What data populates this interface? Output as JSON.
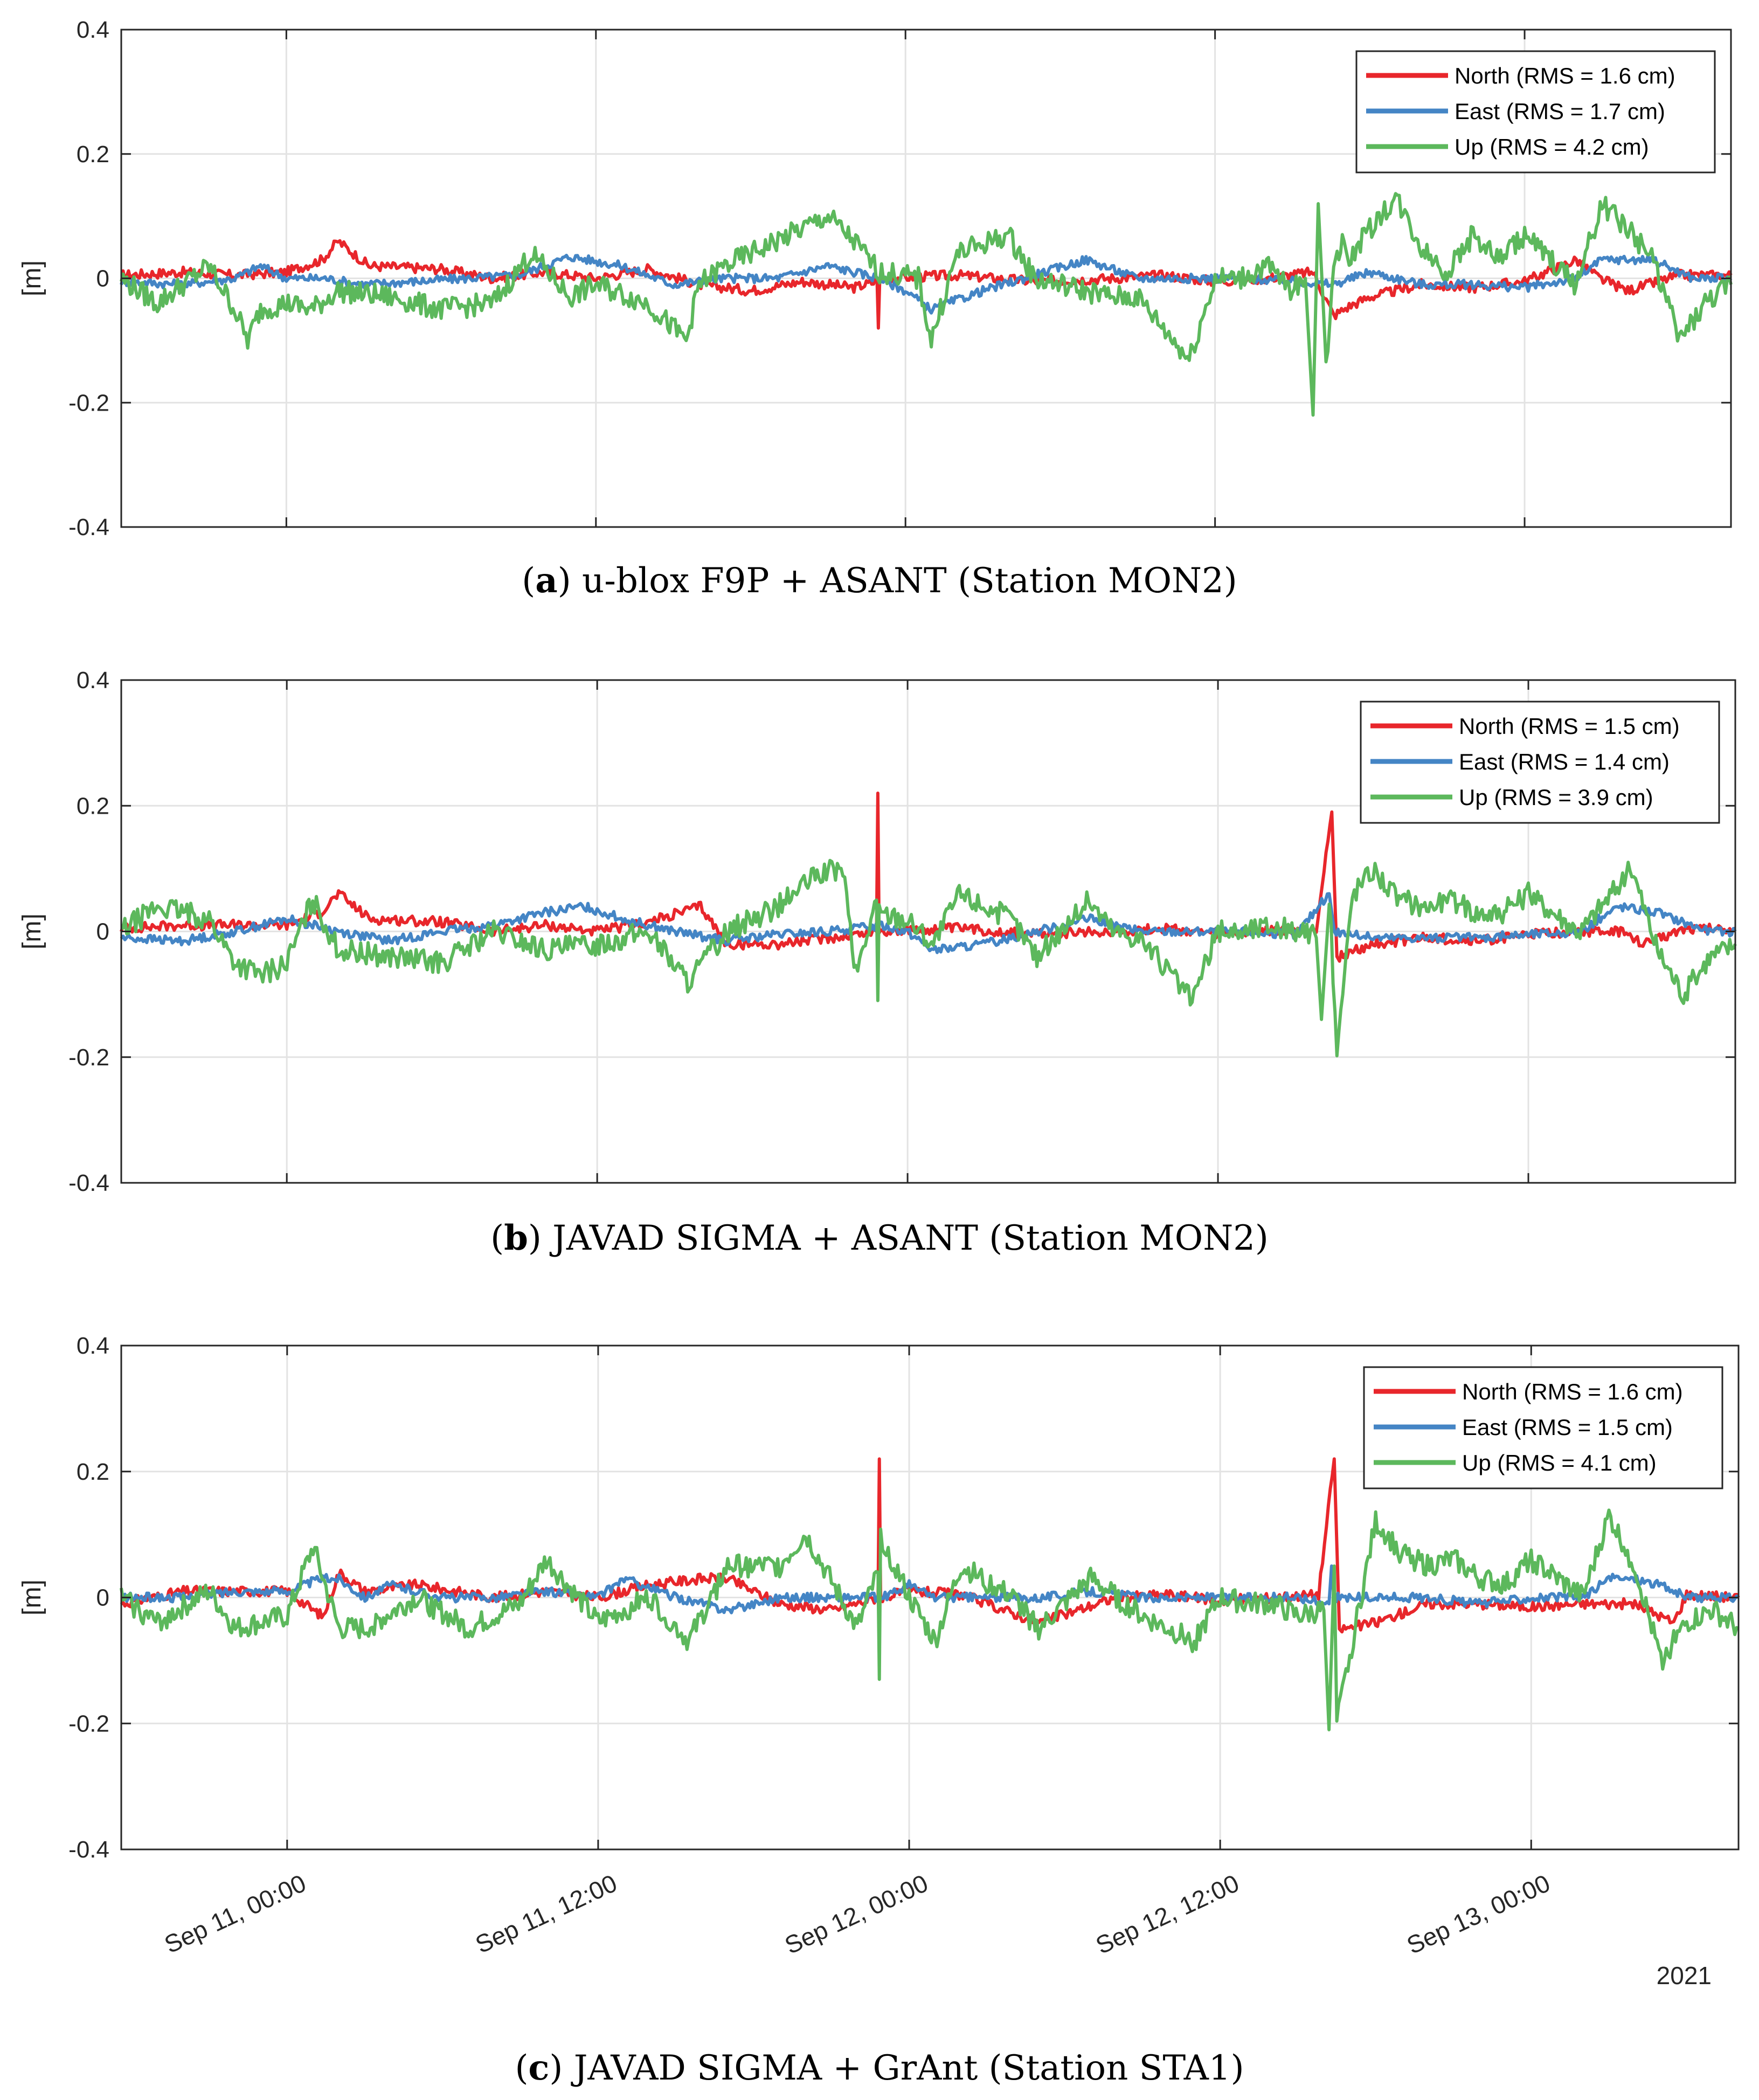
{
  "figure": {
    "year_label": "2021",
    "x_tick_labels": [
      "Sep 11, 00:00",
      "Sep 11, 12:00",
      "Sep 12, 00:00",
      "Sep 12, 12:00",
      "Sep 13, 00:00"
    ]
  },
  "chart_data": [
    {
      "type": "line",
      "caption_letter": "a",
      "caption_text": " u-blox F9P + ASANT (Station MON2)",
      "ylabel": "[m]",
      "ylim": [
        -0.4,
        0.4
      ],
      "y_ticks": [
        0.4,
        0.2,
        0,
        -0.2,
        -0.4
      ],
      "y_tick_labels": [
        "0.4",
        "0.2",
        "0",
        "-0.2",
        "-0.4"
      ],
      "x_unit": "hours since Sep 11, 00:00",
      "xlim": [
        -6.4,
        56
      ],
      "grid": true,
      "legend_position": "top-right",
      "series": [
        {
          "name": "North",
          "legend": "North (RMS = 1.6 cm)",
          "color": "#e8262b",
          "x": [
            -6.4,
            -4,
            -2,
            0,
            1.4,
            2.0,
            2.6,
            3.2,
            6,
            8,
            10,
            12,
            14,
            16,
            18,
            20,
            22,
            22.9,
            22.95,
            23,
            26,
            29,
            32,
            34,
            36,
            38,
            39.8,
            40.6,
            41.2,
            42,
            44,
            46,
            48,
            50,
            50.9,
            52,
            54,
            56
          ],
          "y": [
            0.005,
            0.01,
            0.005,
            0.01,
            0.03,
            0.06,
            0.04,
            0.02,
            0.015,
            0.0,
            0.01,
            0.0,
            0.015,
            -0.01,
            -0.02,
            -0.005,
            -0.015,
            -0.005,
            -0.08,
            0.0,
            0.005,
            -0.005,
            0.0,
            0.005,
            -0.005,
            0.0,
            0.01,
            -0.06,
            -0.045,
            -0.03,
            -0.01,
            -0.015,
            -0.005,
            0.03,
            0.0,
            -0.02,
            0.005,
            0.005
          ]
        },
        {
          "name": "East",
          "legend": "East (RMS = 1.7 cm)",
          "color": "#4485c5",
          "x": [
            -6.4,
            -4,
            -2,
            -1,
            0,
            1.5,
            3,
            5,
            7,
            9,
            11,
            13,
            15,
            17,
            19,
            21,
            23,
            24,
            25,
            27,
            29,
            31,
            33,
            35,
            37,
            39,
            40.6,
            42,
            44,
            46,
            48,
            50,
            51,
            53,
            54.5,
            56
          ],
          "y": [
            -0.005,
            -0.01,
            0.0,
            0.02,
            0.0,
            0.0,
            -0.01,
            -0.005,
            0.0,
            0.005,
            0.035,
            0.02,
            -0.01,
            0.0,
            0.0,
            0.02,
            0.0,
            -0.02,
            -0.05,
            -0.02,
            0.005,
            0.03,
            0.0,
            0.0,
            0.0,
            -0.005,
            -0.01,
            0.01,
            -0.01,
            -0.01,
            -0.015,
            0.0,
            0.03,
            0.03,
            0.0,
            0.0
          ]
        },
        {
          "name": "Up",
          "legend": "Up (RMS = 4.2 cm)",
          "color": "#5cb85c",
          "x": [
            -6.4,
            -5,
            -3,
            -2,
            -1.5,
            -1,
            0,
            1,
            2,
            4,
            6,
            8,
            9.5,
            11,
            12,
            14,
            15.5,
            16,
            17,
            19,
            21,
            22,
            23,
            24.5,
            25,
            26,
            28,
            29,
            31,
            32,
            33,
            34,
            35,
            36,
            37,
            38,
            39,
            39.5,
            39.8,
            40.0,
            40.3,
            40.6,
            41.0,
            41.2,
            42,
            43,
            44,
            45,
            46,
            47,
            48,
            50,
            51,
            52,
            53,
            54,
            55,
            56
          ],
          "y": [
            0.0,
            -0.04,
            0.02,
            -0.05,
            -0.1,
            -0.05,
            -0.04,
            -0.05,
            -0.02,
            -0.03,
            -0.05,
            -0.04,
            0.04,
            -0.03,
            -0.01,
            -0.04,
            -0.1,
            -0.01,
            0.02,
            0.06,
            0.1,
            0.06,
            0.01,
            0.0,
            -0.1,
            0.04,
            0.07,
            0.0,
            -0.02,
            -0.03,
            -0.03,
            -0.08,
            -0.13,
            0.0,
            0.0,
            0.02,
            -0.02,
            0.0,
            -0.22,
            0.12,
            -0.15,
            0.03,
            0.06,
            0.03,
            0.08,
            0.13,
            0.05,
            0.01,
            0.07,
            0.03,
            0.07,
            -0.01,
            0.12,
            0.08,
            0.03,
            -0.1,
            -0.04,
            -0.01
          ]
        }
      ]
    },
    {
      "type": "line",
      "caption_letter": "b",
      "caption_text": " JAVAD SIGMA + ASANT (Station MON2)",
      "ylabel": "[m]",
      "ylim": [
        -0.4,
        0.4
      ],
      "y_ticks": [
        0.4,
        0.2,
        0,
        -0.2,
        -0.4
      ],
      "y_tick_labels": [
        "0.4",
        "0.2",
        "0",
        "-0.2",
        "-0.4"
      ],
      "x_unit": "hours since Sep 11, 00:00",
      "xlim": [
        -6.4,
        56
      ],
      "grid": true,
      "legend_position": "top-right",
      "series": [
        {
          "name": "North",
          "legend": "North (RMS = 1.5 cm)",
          "color": "#e8262b",
          "x": [
            -6.4,
            -4,
            -2,
            0,
            1.3,
            2.0,
            2.6,
            3.2,
            6,
            8,
            10,
            12,
            14,
            16,
            17,
            19,
            21,
            22.8,
            22.85,
            22.9,
            26,
            29,
            32,
            34,
            36,
            38,
            39.8,
            40.4,
            40.6,
            40.7,
            42,
            44,
            46,
            48,
            50,
            51.5,
            52.5,
            54,
            56
          ],
          "y": [
            0.005,
            0.01,
            0.01,
            0.01,
            0.03,
            0.06,
            0.04,
            0.02,
            0.015,
            0.0,
            0.01,
            0.0,
            0.015,
            0.04,
            -0.02,
            -0.02,
            -0.01,
            0.0,
            0.22,
            0.0,
            0.005,
            -0.005,
            0.0,
            0.005,
            -0.005,
            0.0,
            0.005,
            0.19,
            -0.04,
            -0.04,
            -0.02,
            -0.01,
            -0.015,
            -0.005,
            0.0,
            0.0,
            -0.02,
            0.005,
            0.005
          ]
        },
        {
          "name": "East",
          "legend": "East (RMS = 1.4 cm)",
          "color": "#4485c5",
          "x": [
            -6.4,
            -4,
            -2,
            0,
            2,
            4,
            6,
            8,
            10,
            11.5,
            13,
            15,
            17,
            19,
            21,
            23,
            24,
            25,
            27,
            29,
            31,
            33,
            35,
            37,
            39,
            40.3,
            40.5,
            42,
            44,
            46,
            48,
            50,
            51.5,
            53,
            55,
            56
          ],
          "y": [
            -0.01,
            -0.015,
            0.0,
            0.02,
            0.0,
            -0.015,
            0.0,
            0.01,
            0.03,
            0.04,
            0.02,
            0.0,
            -0.015,
            -0.005,
            0.0,
            0.01,
            0.0,
            -0.03,
            -0.02,
            0.0,
            0.02,
            0.0,
            0.0,
            0.0,
            -0.005,
            0.06,
            0.0,
            -0.01,
            -0.01,
            -0.01,
            -0.005,
            0.0,
            0.04,
            0.03,
            0.0,
            0.0
          ]
        },
        {
          "name": "Up",
          "legend": "Up (RMS = 3.9 cm)",
          "color": "#5cb85c",
          "x": [
            -6.4,
            -5,
            -3,
            -2,
            -1,
            0,
            1,
            2,
            4,
            6,
            8,
            10,
            12,
            14,
            15.5,
            17,
            19,
            20.5,
            21.5,
            22,
            22.8,
            22.85,
            22.9,
            24,
            25,
            26,
            28,
            29,
            31,
            32,
            33,
            34,
            35,
            36,
            37,
            38,
            39,
            39.8,
            40.0,
            40.3,
            40.6,
            41.2,
            42,
            43,
            44,
            45,
            46,
            47,
            48,
            50,
            51,
            52,
            53,
            54,
            55,
            56
          ],
          "y": [
            0.0,
            0.04,
            0.02,
            -0.05,
            -0.07,
            -0.05,
            0.05,
            -0.03,
            -0.04,
            -0.05,
            0.0,
            -0.03,
            -0.02,
            0.0,
            -0.08,
            0.0,
            0.04,
            0.09,
            0.1,
            -0.07,
            0.05,
            -0.11,
            0.03,
            0.02,
            -0.02,
            0.06,
            0.02,
            -0.04,
            0.05,
            0.0,
            -0.01,
            -0.06,
            -0.11,
            0.0,
            0.0,
            0.01,
            0.0,
            -0.01,
            -0.14,
            0.06,
            -0.19,
            0.06,
            0.1,
            0.05,
            0.04,
            0.05,
            0.03,
            0.03,
            0.06,
            0.0,
            0.05,
            0.1,
            -0.03,
            -0.1,
            -0.04,
            -0.02
          ]
        }
      ]
    },
    {
      "type": "line",
      "caption_letter": "c",
      "caption_text": " JAVAD SIGMA + GrAnt (Station STA1)",
      "ylabel": "[m]",
      "xlabel": "2021",
      "ylim": [
        -0.4,
        0.4
      ],
      "y_ticks": [
        0.4,
        0.2,
        0,
        -0.2,
        -0.4
      ],
      "y_tick_labels": [
        "0.4",
        "0.2",
        "0",
        "-0.2",
        "-0.4"
      ],
      "x_unit": "hours since Sep 11, 00:00",
      "xlim": [
        -6.4,
        56
      ],
      "grid": true,
      "legend_position": "top-right",
      "series": [
        {
          "name": "North",
          "legend": "North (RMS = 1.6 cm)",
          "color": "#e8262b",
          "x": [
            -6.4,
            -4,
            -2,
            0,
            1,
            1.4,
            2,
            3,
            5,
            8,
            10,
            12,
            14,
            16,
            17,
            19,
            21,
            22.8,
            22.85,
            22.9,
            24,
            26,
            29,
            32,
            34,
            36,
            38,
            39.8,
            40.4,
            40.6,
            40.7,
            42,
            44,
            46,
            48,
            50,
            52,
            53.5,
            54,
            56
          ],
          "y": [
            -0.01,
            0.01,
            0.01,
            0.01,
            -0.02,
            -0.03,
            0.04,
            0.01,
            0.02,
            0.0,
            0.01,
            0.0,
            0.02,
            0.03,
            0.03,
            -0.01,
            -0.02,
            0.0,
            0.22,
            0.0,
            0.01,
            0.005,
            -0.04,
            0.0,
            0.005,
            -0.005,
            0.0,
            0.005,
            0.22,
            -0.05,
            -0.05,
            -0.04,
            -0.01,
            -0.01,
            -0.015,
            -0.01,
            -0.01,
            -0.04,
            0.005,
            0.0
          ]
        },
        {
          "name": "East",
          "legend": "East (RMS = 1.5 cm)",
          "color": "#4485c5",
          "x": [
            -6.4,
            -4,
            -2,
            0,
            1.3,
            2,
            3,
            4,
            6,
            8,
            10,
            12,
            13,
            15,
            17,
            19,
            21,
            23,
            24,
            25,
            27,
            29,
            31,
            33,
            35,
            37,
            39,
            40.2,
            40.3,
            40.4,
            42,
            44,
            46,
            48,
            50,
            51,
            52,
            53,
            54,
            56
          ],
          "y": [
            0.0,
            0.0,
            0.01,
            0.01,
            0.03,
            0.03,
            0.0,
            0.02,
            0.0,
            0.0,
            0.01,
            0.0,
            0.03,
            0.0,
            -0.02,
            0.0,
            0.0,
            0.0,
            0.02,
            0.0,
            0.0,
            0.0,
            0.01,
            0.0,
            0.0,
            0.0,
            0.0,
            -0.01,
            0.05,
            0.0,
            0.0,
            0.0,
            -0.01,
            0.0,
            0.0,
            0.03,
            0.03,
            0.02,
            0.0,
            0.0
          ]
        },
        {
          "name": "Up",
          "legend": "Up (RMS = 4.1 cm)",
          "color": "#5cb85c",
          "x": [
            -6.4,
            -5,
            -3,
            -2,
            -1,
            0,
            1,
            2,
            3,
            5,
            7,
            9,
            10,
            12,
            14,
            15.5,
            17,
            19,
            20,
            22,
            22.8,
            22.85,
            22.9,
            24,
            25,
            26,
            28,
            29,
            31,
            32,
            33,
            34,
            35,
            36,
            37,
            38,
            39,
            40,
            40.2,
            40.4,
            40.5,
            42,
            43,
            44,
            45,
            46,
            47,
            48,
            50,
            51,
            52,
            53,
            54,
            55,
            56
          ],
          "y": [
            0.0,
            -0.04,
            0.01,
            -0.05,
            -0.04,
            -0.03,
            0.08,
            -0.05,
            -0.05,
            0.0,
            -0.05,
            -0.01,
            0.06,
            -0.04,
            0.0,
            -0.07,
            0.05,
            0.05,
            0.1,
            -0.05,
            0.04,
            -0.13,
            0.1,
            0.0,
            -0.07,
            0.05,
            0.0,
            -0.05,
            0.03,
            0.0,
            -0.03,
            -0.05,
            -0.07,
            0.0,
            -0.01,
            -0.01,
            -0.03,
            -0.02,
            -0.21,
            0.05,
            -0.2,
            0.12,
            0.07,
            0.05,
            0.06,
            0.03,
            0.02,
            0.06,
            0.0,
            0.13,
            0.05,
            -0.1,
            -0.04,
            -0.02,
            -0.05
          ]
        }
      ]
    }
  ]
}
